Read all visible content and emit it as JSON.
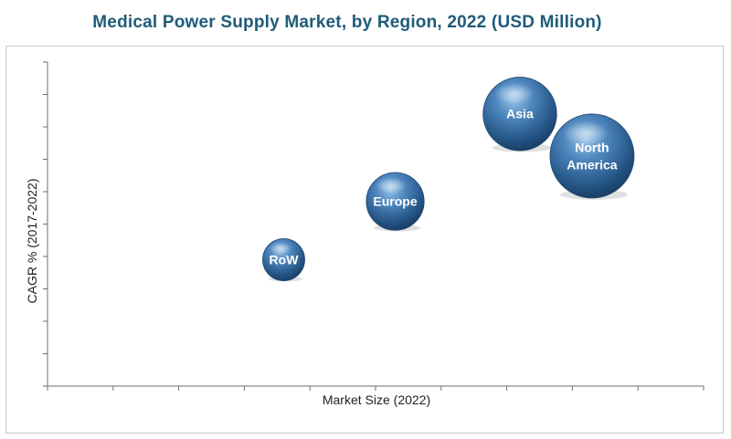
{
  "chart_data": {
    "type": "scatter",
    "title": "Medical Power Supply Market, by Region, 2022 (USD Million)",
    "xlabel": "Market Size (2022)",
    "ylabel": "CAGR % (2017-2022)",
    "xlim": [
      0,
      10
    ],
    "ylim": [
      0,
      10
    ],
    "grid": false,
    "legend": "none",
    "points": [
      {
        "label": "RoW",
        "x": 3.6,
        "y": 3.9,
        "size": 0.32,
        "font": 14
      },
      {
        "label": "Europe",
        "x": 5.3,
        "y": 5.7,
        "size": 0.44,
        "font": 14
      },
      {
        "label": "Asia",
        "x": 7.2,
        "y": 8.4,
        "size": 0.56,
        "font": 14
      },
      {
        "label": "North America",
        "x": 8.3,
        "y": 7.1,
        "size": 0.64,
        "font": 14
      }
    ],
    "bubble_color": "#3b6fa3"
  }
}
